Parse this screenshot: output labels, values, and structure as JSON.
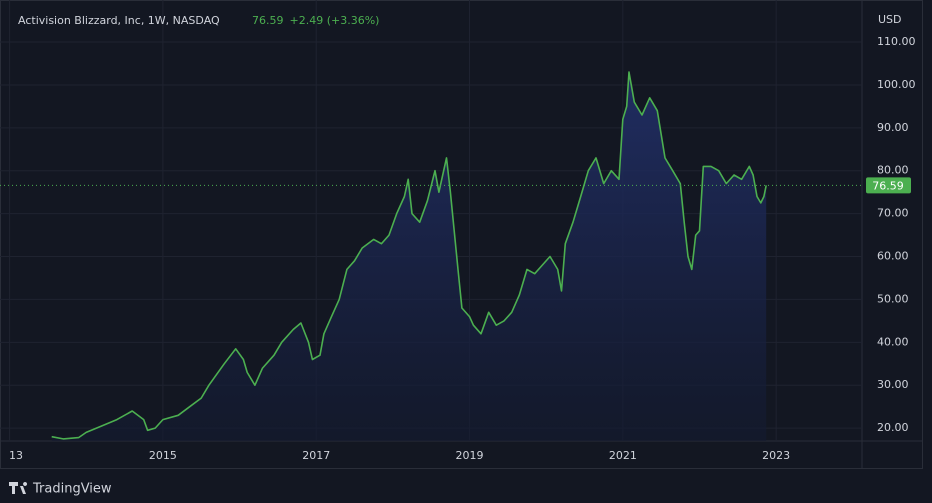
{
  "chart_data": {
    "type": "area",
    "title": "Activision Blizzard, Inc, 1W, NASDAQ",
    "price": 76.59,
    "change": "+2.49 (+3.36%)",
    "currency": "USD",
    "brand": "TradingView",
    "color": "#4caf50",
    "fill": "#1e2b5a",
    "grid": true,
    "x": [
      2013.55,
      2013.7,
      2013.9,
      2014.0,
      2014.2,
      2014.4,
      2014.6,
      2014.75,
      2014.8,
      2014.9,
      2015.0,
      2015.2,
      2015.35,
      2015.5,
      2015.6,
      2015.8,
      2015.95,
      2016.05,
      2016.1,
      2016.2,
      2016.3,
      2016.45,
      2016.55,
      2016.7,
      2016.8,
      2016.9,
      2016.95,
      2017.05,
      2017.1,
      2017.2,
      2017.3,
      2017.4,
      2017.5,
      2017.6,
      2017.75,
      2017.85,
      2017.95,
      2018.05,
      2018.15,
      2018.2,
      2018.25,
      2018.35,
      2018.45,
      2018.55,
      2018.6,
      2018.7,
      2018.75,
      2018.8,
      2018.85,
      2018.9,
      2019.0,
      2019.05,
      2019.15,
      2019.25,
      2019.35,
      2019.45,
      2019.55,
      2019.65,
      2019.75,
      2019.85,
      2019.95,
      2020.05,
      2020.15,
      2020.2,
      2020.25,
      2020.35,
      2020.45,
      2020.55,
      2020.65,
      2020.75,
      2020.85,
      2020.95,
      2021.0,
      2021.05,
      2021.08,
      2021.15,
      2021.25,
      2021.35,
      2021.45,
      2021.55,
      2021.65,
      2021.75,
      2021.8,
      2021.85,
      2021.9,
      2021.95,
      2022.0,
      2022.05,
      2022.15,
      2022.25,
      2022.35,
      2022.45,
      2022.55,
      2022.65,
      2022.7,
      2022.75,
      2022.8,
      2022.84,
      2022.87
    ],
    "values": [
      18,
      17.5,
      17.8,
      19,
      20.5,
      22,
      24,
      22,
      19.5,
      20,
      22,
      23,
      25,
      27,
      30,
      35,
      38.5,
      36,
      33,
      30,
      34,
      37,
      40,
      43,
      44.5,
      40,
      36,
      37,
      42,
      46,
      50,
      57,
      59,
      62,
      64,
      63,
      65,
      70,
      74,
      78,
      70,
      68,
      73,
      80,
      75,
      83,
      75,
      66,
      57,
      48,
      46,
      44,
      42,
      47,
      44,
      45,
      47,
      51,
      57,
      56,
      58,
      60,
      57,
      52,
      63,
      68,
      74,
      80,
      83,
      77,
      80,
      78,
      92,
      95,
      103,
      96,
      93,
      97,
      94,
      83,
      80,
      77,
      68,
      60,
      57,
      65,
      66,
      81,
      81,
      80,
      77,
      79,
      78,
      81,
      79,
      74,
      72.5,
      74,
      76.59
    ],
    "xlim": [
      2012.875,
      2024.12
    ],
    "xticks": [
      {
        "value": 2013,
        "label": "13"
      },
      2015,
      2017,
      2019,
      2021,
      2023
    ],
    "ylim": [
      17,
      119.8
    ],
    "yticks": [
      {
        "value": 20,
        "label": "20.00"
      },
      {
        "value": 30,
        "label": "30.00"
      },
      {
        "value": 40,
        "label": "40.00"
      },
      {
        "value": 50,
        "label": "50.00"
      },
      {
        "value": 60,
        "label": "60.00"
      },
      {
        "value": 70,
        "label": "70.00"
      },
      {
        "value": 80,
        "label": "80.00"
      },
      {
        "value": 90,
        "label": "90.00"
      },
      {
        "value": 100,
        "label": "100.00"
      },
      {
        "value": 110,
        "label": "110.00"
      }
    ]
  }
}
